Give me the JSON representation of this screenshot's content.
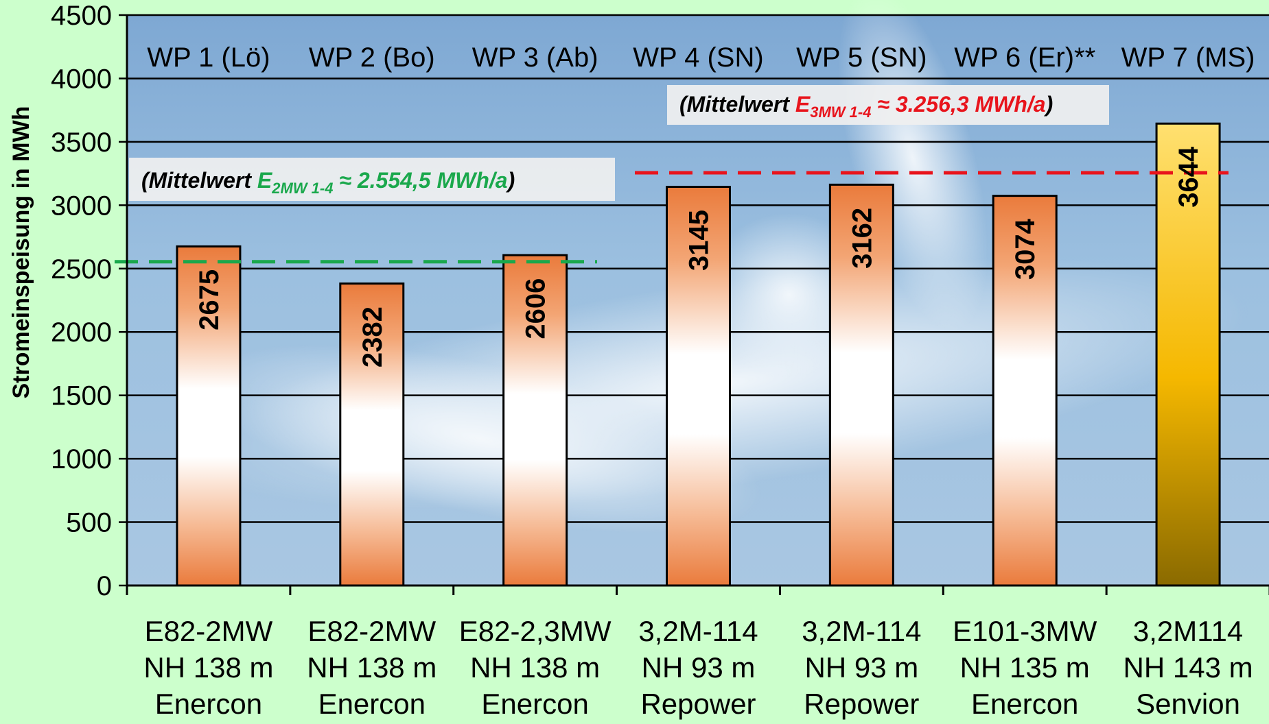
{
  "chart_data": {
    "type": "bar",
    "ylabel": "Stromeinspeisung in MWh",
    "ylim": [
      0,
      4500
    ],
    "yticks": [
      0,
      500,
      1000,
      1500,
      2000,
      2500,
      3000,
      3500,
      4000,
      4500
    ],
    "grid": true,
    "categories": [
      {
        "wp": "WP 1 (Lö)",
        "lines": [
          "E82-2MW",
          "NH 138 m",
          "Enercon"
        ],
        "value": 2675
      },
      {
        "wp": "WP 2 (Bo)",
        "lines": [
          "E82-2MW",
          "NH 138 m",
          "Enercon"
        ],
        "value": 2382
      },
      {
        "wp": "WP 3 (Ab)",
        "lines": [
          "E82-2,3MW",
          "NH 138 m",
          "Enercon"
        ],
        "value": 2606
      },
      {
        "wp": "WP 4 (SN)",
        "lines": [
          "3,2M-114",
          "NH 93 m",
          "Repower"
        ],
        "value": 3145
      },
      {
        "wp": "WP 5 (SN)",
        "lines": [
          "3,2M-114",
          "NH 93 m",
          "Repower"
        ],
        "value": 3162
      },
      {
        "wp": "WP 6 (Er)**",
        "lines": [
          "E101-3MW",
          "NH 135 m",
          "Enercon"
        ],
        "value": 3074
      },
      {
        "wp": "WP 7 (MS)",
        "lines": [
          "3,2M114",
          "NH 143 m",
          "Senvion"
        ],
        "value": 3644
      }
    ],
    "averages": [
      {
        "prefix": "(Mittelwert ",
        "symbol": "E",
        "subscript": "2MW 1-4",
        "value_text": " ≈ 2.554,5 MWh/a",
        "suffix": ")",
        "value": 2554.5,
        "color": "#1aa84c"
      },
      {
        "prefix": "(Mittelwert ",
        "symbol": "E",
        "subscript": "3MW 1-4",
        "value_text": " ≈ 3.256,3 MWh/a",
        "suffix": ")",
        "value": 3256.3,
        "color": "#e8141c"
      }
    ],
    "colors": {
      "bar_top": "#ea7b3c",
      "bar_mid": "#ffffff",
      "highlight_top": "#ffe070",
      "highlight_mid": "#f5b800",
      "highlight_bottom": "#8a6a00",
      "plot_background": "#8fb6da",
      "page_background": "#ccffcc"
    }
  }
}
